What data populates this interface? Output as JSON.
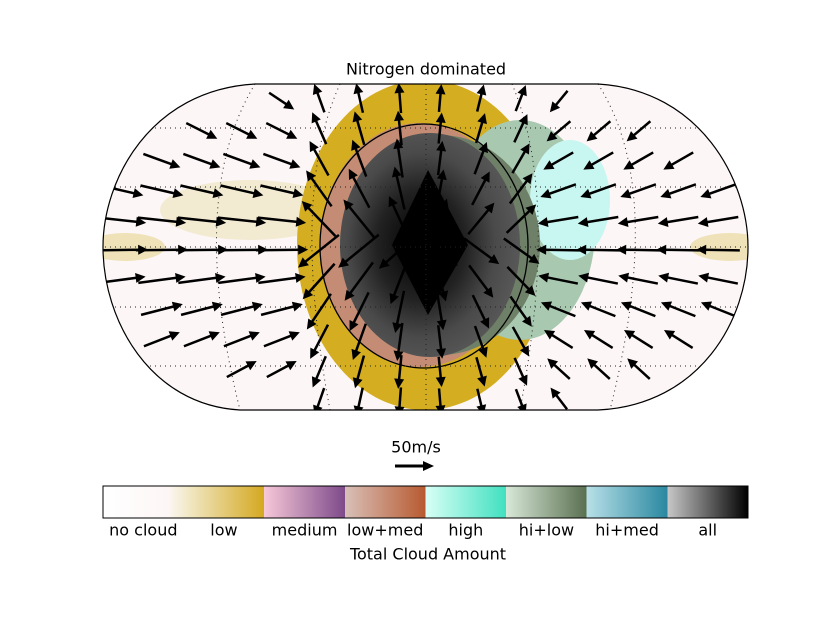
{
  "title": "Nitrogen dominated",
  "quiver_key": {
    "label": "50m/s"
  },
  "colorbar": {
    "labels": [
      "no cloud",
      "low",
      "medium",
      "low+med",
      "high",
      "hi+low",
      "hi+med",
      "all"
    ],
    "title": "Total Cloud Amount"
  }
}
